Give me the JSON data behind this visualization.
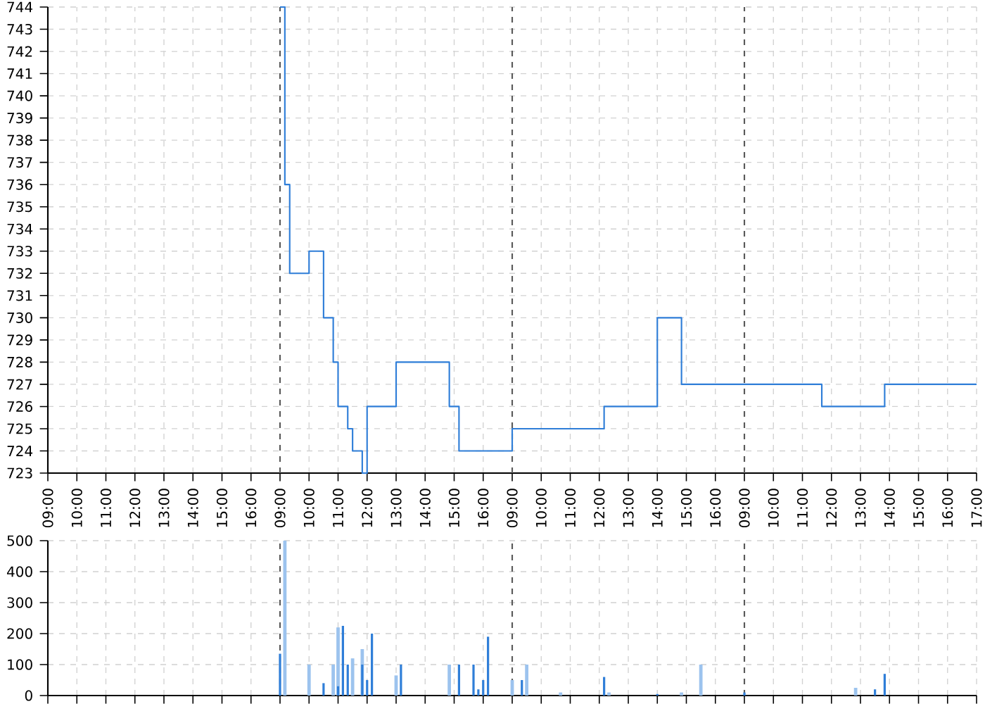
{
  "chart_data": [
    {
      "type": "step",
      "color": "#2f7ed8",
      "grid": true,
      "line_style": "solid",
      "categories": [
        "09:00",
        null,
        null,
        null,
        null,
        null,
        "10:00",
        null,
        null,
        null,
        null,
        null,
        "11:00",
        null,
        null,
        null,
        null,
        null,
        "12:00",
        null,
        null,
        null,
        null,
        null,
        "13:00",
        null,
        null,
        null,
        null,
        null,
        "14:00",
        null,
        null,
        null,
        null,
        null,
        "15:00",
        null,
        null,
        null,
        null,
        null,
        "16:00",
        null,
        null,
        null,
        null,
        null,
        "09:00",
        null,
        null,
        null,
        null,
        null,
        "10:00",
        null,
        null,
        null,
        null,
        null,
        "11:00",
        null,
        null,
        null,
        null,
        null,
        "12:00",
        null,
        null,
        null,
        null,
        null,
        "13:00",
        null,
        null,
        null,
        null,
        null,
        "14:00",
        null,
        null,
        null,
        null,
        null,
        "15:00",
        null,
        null,
        null,
        null,
        null,
        "16:00",
        null,
        null,
        null,
        null,
        null,
        "09:00",
        null,
        null,
        null,
        null,
        null,
        "10:00",
        null,
        null,
        null,
        null,
        null,
        "11:00",
        null,
        null,
        null,
        null,
        null,
        "12:00",
        null,
        null,
        null,
        null,
        null,
        "13:00",
        null,
        null,
        null,
        null,
        null,
        "14:00",
        null,
        null,
        null,
        null,
        null,
        "15:00",
        null,
        null,
        null,
        null,
        null,
        "16:00",
        null,
        null,
        null,
        null,
        null,
        "09:00",
        null,
        null,
        null,
        null,
        null,
        "10:00",
        null,
        null,
        null,
        null,
        null,
        "11:00",
        null,
        null,
        null,
        null,
        null,
        "12:00",
        null,
        null,
        null,
        null,
        null,
        "13:00",
        null,
        null,
        null,
        null,
        null,
        "14:00",
        null,
        null,
        null,
        null,
        null,
        "15:00",
        null,
        null,
        null,
        null,
        null,
        "16:00",
        null,
        null,
        null,
        null,
        null,
        "17:00"
      ],
      "values": [
        null,
        null,
        null,
        null,
        null,
        null,
        null,
        null,
        null,
        null,
        null,
        null,
        null,
        null,
        null,
        null,
        null,
        null,
        null,
        null,
        null,
        null,
        null,
        null,
        null,
        null,
        null,
        null,
        null,
        null,
        null,
        null,
        null,
        null,
        null,
        null,
        null,
        null,
        null,
        null,
        null,
        null,
        null,
        null,
        null,
        null,
        null,
        null,
        744,
        736,
        732,
        732,
        732,
        732,
        733,
        733,
        733,
        730,
        730,
        728,
        726,
        726,
        725,
        724,
        724,
        723,
        726,
        726,
        726,
        726,
        726,
        726,
        728,
        728,
        728,
        728,
        728,
        728,
        728,
        728,
        728,
        728,
        728,
        726,
        726,
        724,
        724,
        724,
        724,
        724,
        724,
        724,
        724,
        724,
        724,
        724,
        725,
        725,
        725,
        725,
        725,
        725,
        725,
        725,
        725,
        725,
        725,
        725,
        725,
        725,
        725,
        725,
        725,
        725,
        725,
        726,
        726,
        726,
        726,
        726,
        726,
        726,
        726,
        726,
        726,
        726,
        730,
        730,
        730,
        730,
        730,
        727,
        727,
        727,
        727,
        727,
        727,
        727,
        727,
        727,
        727,
        727,
        727,
        727,
        727,
        727,
        727,
        727,
        727,
        727,
        727,
        727,
        727,
        727,
        727,
        727,
        727,
        727,
        727,
        727,
        726,
        726,
        726,
        726,
        726,
        726,
        726,
        726,
        726,
        726,
        726,
        726,
        726,
        727,
        727,
        727,
        727,
        727,
        727,
        727,
        727,
        727,
        727,
        727,
        727,
        727,
        727,
        727,
        727,
        727,
        727,
        727,
        727
      ],
      "ylim": [
        723,
        744
      ],
      "yticks": [
        723,
        724,
        725,
        726,
        727,
        728,
        729,
        730,
        731,
        732,
        733,
        734,
        735,
        736,
        737,
        738,
        739,
        740,
        741,
        742,
        743,
        744
      ]
    },
    {
      "type": "bar",
      "grid": true,
      "tick_labels": "y",
      "categories": [
        null,
        null,
        null,
        null,
        null,
        null,
        null,
        null,
        null,
        null,
        null,
        null,
        null,
        null,
        null,
        null,
        null,
        null,
        null,
        null,
        null,
        null,
        null,
        null,
        null,
        null,
        null,
        null,
        null,
        null,
        null,
        null,
        null,
        null,
        null,
        null,
        null,
        null,
        null,
        null,
        null,
        null,
        null,
        null,
        null,
        null,
        null,
        null,
        null,
        null,
        null,
        null,
        null,
        null,
        null,
        null,
        null,
        null,
        null,
        null,
        null,
        null,
        null,
        null,
        null,
        null,
        null,
        null,
        null,
        null,
        null,
        null,
        null,
        null,
        null,
        null,
        null,
        null,
        null,
        null,
        null,
        null,
        null,
        null,
        null,
        null,
        null,
        null,
        null,
        null,
        null,
        null,
        null,
        null,
        null,
        null,
        null,
        null,
        null,
        null,
        null,
        null,
        null,
        null,
        null,
        null,
        null,
        null,
        null,
        null,
        null,
        null,
        null,
        null,
        null,
        null,
        null,
        null,
        null,
        null,
        null,
        null,
        null,
        null,
        null,
        null,
        null,
        null,
        null,
        null,
        null,
        null,
        null,
        null,
        null,
        null,
        null,
        null,
        null,
        null,
        null,
        null,
        null,
        null,
        null,
        null,
        null,
        null,
        null,
        null,
        null,
        null,
        null,
        null,
        null,
        null,
        null,
        null,
        null,
        null,
        null,
        null,
        null,
        null,
        null,
        null,
        null,
        null,
        null,
        null,
        null,
        null,
        null,
        null,
        null,
        null,
        null,
        null,
        null,
        null,
        null,
        null,
        null,
        null,
        null,
        null,
        null,
        null,
        null,
        null,
        null,
        null,
        null
      ],
      "series": [
        {
          "color": "#9cc3ee",
          "values": [
            null,
            null,
            null,
            null,
            null,
            null,
            null,
            null,
            null,
            null,
            null,
            null,
            null,
            null,
            null,
            null,
            null,
            null,
            null,
            null,
            null,
            null,
            null,
            null,
            null,
            null,
            null,
            null,
            null,
            null,
            null,
            null,
            null,
            null,
            null,
            null,
            null,
            null,
            null,
            null,
            null,
            null,
            null,
            null,
            null,
            null,
            null,
            null,
            null,
            500,
            null,
            null,
            null,
            null,
            100,
            null,
            null,
            null,
            null,
            100,
            220,
            null,
            null,
            120,
            null,
            150,
            null,
            null,
            null,
            null,
            null,
            null,
            65,
            null,
            null,
            null,
            null,
            null,
            null,
            null,
            null,
            null,
            null,
            100,
            null,
            null,
            null,
            null,
            null,
            null,
            null,
            null,
            null,
            null,
            null,
            null,
            50,
            null,
            null,
            100,
            null,
            null,
            null,
            null,
            null,
            null,
            10,
            null,
            null,
            null,
            null,
            null,
            null,
            null,
            null,
            null,
            10,
            null,
            null,
            null,
            null,
            null,
            null,
            null,
            null,
            null,
            null,
            null,
            null,
            null,
            null,
            10,
            null,
            null,
            null,
            100,
            null,
            null,
            null,
            null,
            null,
            null,
            null,
            null,
            null,
            null,
            null,
            null,
            null,
            null,
            null,
            null,
            null,
            null,
            null,
            null,
            null,
            null,
            null,
            null,
            null,
            null,
            null,
            null,
            null,
            null,
            null,
            25,
            null,
            null,
            null,
            null,
            null,
            null,
            null,
            null,
            null,
            null,
            null,
            null,
            null,
            null,
            null,
            null,
            null,
            null,
            null,
            null,
            null,
            null,
            null,
            null,
            null
          ]
        },
        {
          "color": "#2f7ed8",
          "values": [
            null,
            null,
            null,
            null,
            null,
            null,
            null,
            null,
            null,
            null,
            null,
            null,
            null,
            null,
            null,
            null,
            null,
            null,
            null,
            null,
            null,
            null,
            null,
            null,
            null,
            null,
            null,
            null,
            null,
            null,
            null,
            null,
            null,
            null,
            null,
            null,
            null,
            null,
            null,
            null,
            null,
            null,
            null,
            null,
            null,
            null,
            null,
            null,
            135,
            null,
            null,
            null,
            null,
            null,
            null,
            null,
            null,
            40,
            null,
            null,
            30,
            225,
            100,
            null,
            null,
            100,
            50,
            200,
            null,
            null,
            null,
            null,
            null,
            100,
            null,
            null,
            null,
            null,
            null,
            null,
            null,
            null,
            null,
            null,
            null,
            100,
            null,
            null,
            100,
            20,
            50,
            190,
            null,
            null,
            null,
            null,
            null,
            null,
            50,
            null,
            null,
            null,
            null,
            null,
            null,
            null,
            null,
            null,
            null,
            null,
            null,
            null,
            null,
            null,
            null,
            60,
            null,
            null,
            null,
            null,
            null,
            null,
            null,
            null,
            null,
            null,
            5,
            null,
            null,
            null,
            null,
            null,
            null,
            null,
            null,
            null,
            null,
            null,
            null,
            null,
            null,
            null,
            null,
            null,
            10,
            null,
            null,
            null,
            null,
            null,
            null,
            null,
            null,
            null,
            null,
            null,
            null,
            null,
            null,
            null,
            null,
            null,
            null,
            null,
            null,
            null,
            null,
            null,
            null,
            null,
            null,
            20,
            null,
            70,
            null,
            null,
            null,
            null,
            null,
            null,
            null,
            null,
            null,
            null,
            null,
            null,
            null,
            null,
            null,
            null,
            null,
            null,
            null
          ]
        }
      ],
      "ylim": [
        0,
        500
      ],
      "yticks": [
        0,
        100,
        200,
        300,
        400,
        500
      ]
    }
  ]
}
